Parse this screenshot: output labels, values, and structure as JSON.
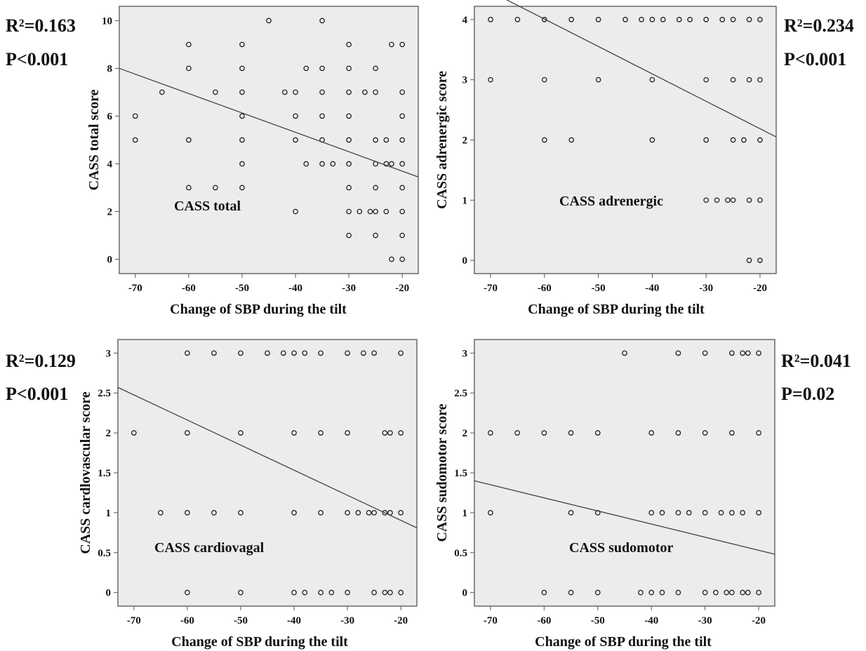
{
  "chart_data": [
    {
      "type": "scatter",
      "panel": "total",
      "r2_label": "R²=0.163",
      "p_label": "P<0.001",
      "inner_label": "CASS total",
      "xlabel": "Change of SBP during the tilt",
      "ylabel": "CASS  total score",
      "xlim": [
        -73,
        -17
      ],
      "ylim": [
        -0.6,
        10.6
      ],
      "xticks": [
        -70,
        -60,
        -50,
        -40,
        -30,
        -20
      ],
      "yticks": [
        0,
        2,
        4,
        6,
        8,
        10
      ],
      "ytick_labels": [
        "0",
        "2",
        "4",
        "6",
        "8",
        "10"
      ],
      "points": [
        [
          -70,
          6
        ],
        [
          -70,
          5
        ],
        [
          -65,
          7
        ],
        [
          -60,
          9
        ],
        [
          -60,
          8
        ],
        [
          -60,
          5
        ],
        [
          -60,
          3
        ],
        [
          -55,
          7
        ],
        [
          -55,
          3
        ],
        [
          -50,
          9
        ],
        [
          -50,
          8
        ],
        [
          -50,
          7
        ],
        [
          -50,
          6
        ],
        [
          -50,
          5
        ],
        [
          -50,
          4
        ],
        [
          -50,
          3
        ],
        [
          -45,
          10
        ],
        [
          -42,
          7
        ],
        [
          -40,
          7
        ],
        [
          -40,
          6
        ],
        [
          -40,
          5
        ],
        [
          -40,
          2
        ],
        [
          -38,
          8
        ],
        [
          -38,
          4
        ],
        [
          -35,
          10
        ],
        [
          -35,
          8
        ],
        [
          -35,
          7
        ],
        [
          -35,
          6
        ],
        [
          -35,
          5
        ],
        [
          -35,
          4
        ],
        [
          -33,
          4
        ],
        [
          -30,
          9
        ],
        [
          -30,
          8
        ],
        [
          -30,
          7
        ],
        [
          -30,
          6
        ],
        [
          -30,
          5
        ],
        [
          -30,
          4
        ],
        [
          -30,
          3
        ],
        [
          -30,
          2
        ],
        [
          -30,
          1
        ],
        [
          -28,
          2
        ],
        [
          -27,
          7
        ],
        [
          -26,
          2
        ],
        [
          -25,
          8
        ],
        [
          -25,
          7
        ],
        [
          -25,
          5
        ],
        [
          -25,
          4
        ],
        [
          -25,
          3
        ],
        [
          -25,
          2
        ],
        [
          -25,
          1
        ],
        [
          -23,
          5
        ],
        [
          -23,
          4
        ],
        [
          -23,
          2
        ],
        [
          -22,
          9
        ],
        [
          -22,
          4
        ],
        [
          -22,
          0
        ],
        [
          -20,
          9
        ],
        [
          -20,
          7
        ],
        [
          -20,
          6
        ],
        [
          -20,
          5
        ],
        [
          -20,
          4
        ],
        [
          -20,
          3
        ],
        [
          -20,
          2
        ],
        [
          -20,
          1
        ],
        [
          -20,
          0
        ]
      ],
      "fit_line": {
        "x": [
          -73,
          -17
        ],
        "y": [
          8.0,
          3.45
        ]
      }
    },
    {
      "type": "scatter",
      "panel": "adrenergic",
      "r2_label": "R²=0.234",
      "p_label": "P<0.001",
      "inner_label": "CASS adrenergic",
      "xlabel": "Change of SBP during the tilt",
      "ylabel": "CASS  adrenergic score",
      "xlim": [
        -73,
        -17
      ],
      "ylim": [
        -0.22,
        4.22
      ],
      "xticks": [
        -70,
        -60,
        -50,
        -40,
        -30,
        -20
      ],
      "yticks": [
        0,
        1,
        2,
        3,
        4
      ],
      "ytick_labels": [
        "0",
        "1",
        "2",
        "3",
        "4"
      ],
      "points": [
        [
          -70,
          4
        ],
        [
          -70,
          3
        ],
        [
          -65,
          4
        ],
        [
          -60,
          4
        ],
        [
          -60,
          3
        ],
        [
          -60,
          2
        ],
        [
          -55,
          4
        ],
        [
          -55,
          2
        ],
        [
          -50,
          4
        ],
        [
          -50,
          3
        ],
        [
          -45,
          4
        ],
        [
          -42,
          4
        ],
        [
          -40,
          4
        ],
        [
          -40,
          3
        ],
        [
          -40,
          2
        ],
        [
          -38,
          4
        ],
        [
          -35,
          4
        ],
        [
          -33,
          4
        ],
        [
          -30,
          4
        ],
        [
          -30,
          3
        ],
        [
          -30,
          2
        ],
        [
          -30,
          1
        ],
        [
          -28,
          1
        ],
        [
          -27,
          4
        ],
        [
          -26,
          1
        ],
        [
          -25,
          4
        ],
        [
          -25,
          3
        ],
        [
          -25,
          2
        ],
        [
          -25,
          1
        ],
        [
          -23,
          2
        ],
        [
          -22,
          4
        ],
        [
          -22,
          3
        ],
        [
          -22,
          1
        ],
        [
          -22,
          0
        ],
        [
          -20,
          4
        ],
        [
          -20,
          3
        ],
        [
          -20,
          2
        ],
        [
          -20,
          1
        ],
        [
          -20,
          0
        ]
      ],
      "fit_line": {
        "x": [
          -73,
          -17
        ],
        "y": [
          4.6,
          2.05
        ]
      }
    },
    {
      "type": "scatter",
      "panel": "cardiovagal",
      "r2_label": "R²=0.129",
      "p_label": "P<0.001",
      "inner_label": "CASS cardiovagal",
      "xlabel": "Change of SBP during the tilt",
      "ylabel": "CASS cardlovascular score",
      "xlim": [
        -73,
        -17
      ],
      "ylim": [
        -0.17,
        3.17
      ],
      "xticks": [
        -70,
        -60,
        -50,
        -40,
        -30,
        -20
      ],
      "yticks": [
        0,
        0.5,
        1,
        1.5,
        2,
        2.5,
        3
      ],
      "ytick_labels": [
        "0",
        "0.5",
        "1",
        "1.5",
        "2",
        "2.5",
        "3"
      ],
      "points": [
        [
          -70,
          2
        ],
        [
          -65,
          1
        ],
        [
          -60,
          3
        ],
        [
          -60,
          2
        ],
        [
          -60,
          1
        ],
        [
          -60,
          0
        ],
        [
          -55,
          3
        ],
        [
          -55,
          1
        ],
        [
          -50,
          3
        ],
        [
          -50,
          2
        ],
        [
          -50,
          1
        ],
        [
          -50,
          0
        ],
        [
          -45,
          3
        ],
        [
          -42,
          3
        ],
        [
          -40,
          3
        ],
        [
          -40,
          2
        ],
        [
          -40,
          1
        ],
        [
          -40,
          0
        ],
        [
          -38,
          3
        ],
        [
          -38,
          0
        ],
        [
          -35,
          3
        ],
        [
          -35,
          2
        ],
        [
          -35,
          1
        ],
        [
          -35,
          0
        ],
        [
          -33,
          0
        ],
        [
          -30,
          3
        ],
        [
          -30,
          2
        ],
        [
          -30,
          1
        ],
        [
          -30,
          0
        ],
        [
          -28,
          1
        ],
        [
          -27,
          3
        ],
        [
          -26,
          1
        ],
        [
          -25,
          3
        ],
        [
          -25,
          1
        ],
        [
          -25,
          0
        ],
        [
          -23,
          2
        ],
        [
          -23,
          1
        ],
        [
          -23,
          0
        ],
        [
          -22,
          2
        ],
        [
          -22,
          1
        ],
        [
          -22,
          0
        ],
        [
          -20,
          3
        ],
        [
          -20,
          2
        ],
        [
          -20,
          1
        ],
        [
          -20,
          0
        ]
      ],
      "fit_line": {
        "x": [
          -73,
          -17
        ],
        "y": [
          2.57,
          0.81
        ]
      }
    },
    {
      "type": "scatter",
      "panel": "sudomotor",
      "r2_label": "R²=0.041",
      "p_label": "P=0.02",
      "inner_label": "CASS sudomotor",
      "xlabel": "Change of SBP during the tilt",
      "ylabel": "CASS sudomotor score",
      "xlim": [
        -73,
        -17
      ],
      "ylim": [
        -0.17,
        3.17
      ],
      "xticks": [
        -70,
        -60,
        -50,
        -40,
        -30,
        -20
      ],
      "yticks": [
        0,
        0.5,
        1,
        1.5,
        2,
        2.5,
        3
      ],
      "ytick_labels": [
        "0",
        "0.5",
        "1",
        "1.5",
        "2",
        "2.5",
        "3"
      ],
      "points": [
        [
          -70,
          2
        ],
        [
          -70,
          1
        ],
        [
          -65,
          2
        ],
        [
          -60,
          2
        ],
        [
          -60,
          0
        ],
        [
          -55,
          2
        ],
        [
          -55,
          1
        ],
        [
          -55,
          0
        ],
        [
          -50,
          2
        ],
        [
          -50,
          1
        ],
        [
          -50,
          0
        ],
        [
          -45,
          3
        ],
        [
          -42,
          0
        ],
        [
          -40,
          2
        ],
        [
          -40,
          1
        ],
        [
          -40,
          0
        ],
        [
          -38,
          1
        ],
        [
          -38,
          0
        ],
        [
          -35,
          3
        ],
        [
          -35,
          2
        ],
        [
          -35,
          1
        ],
        [
          -35,
          0
        ],
        [
          -33,
          1
        ],
        [
          -30,
          3
        ],
        [
          -30,
          2
        ],
        [
          -30,
          1
        ],
        [
          -30,
          0
        ],
        [
          -28,
          0
        ],
        [
          -27,
          1
        ],
        [
          -26,
          0
        ],
        [
          -25,
          3
        ],
        [
          -25,
          2
        ],
        [
          -25,
          1
        ],
        [
          -25,
          0
        ],
        [
          -23,
          3
        ],
        [
          -23,
          1
        ],
        [
          -23,
          0
        ],
        [
          -22,
          3
        ],
        [
          -22,
          0
        ],
        [
          -20,
          3
        ],
        [
          -20,
          2
        ],
        [
          -20,
          1
        ],
        [
          -20,
          0
        ]
      ],
      "fit_line": {
        "x": [
          -73,
          -17
        ],
        "y": [
          1.4,
          0.48
        ]
      }
    }
  ]
}
